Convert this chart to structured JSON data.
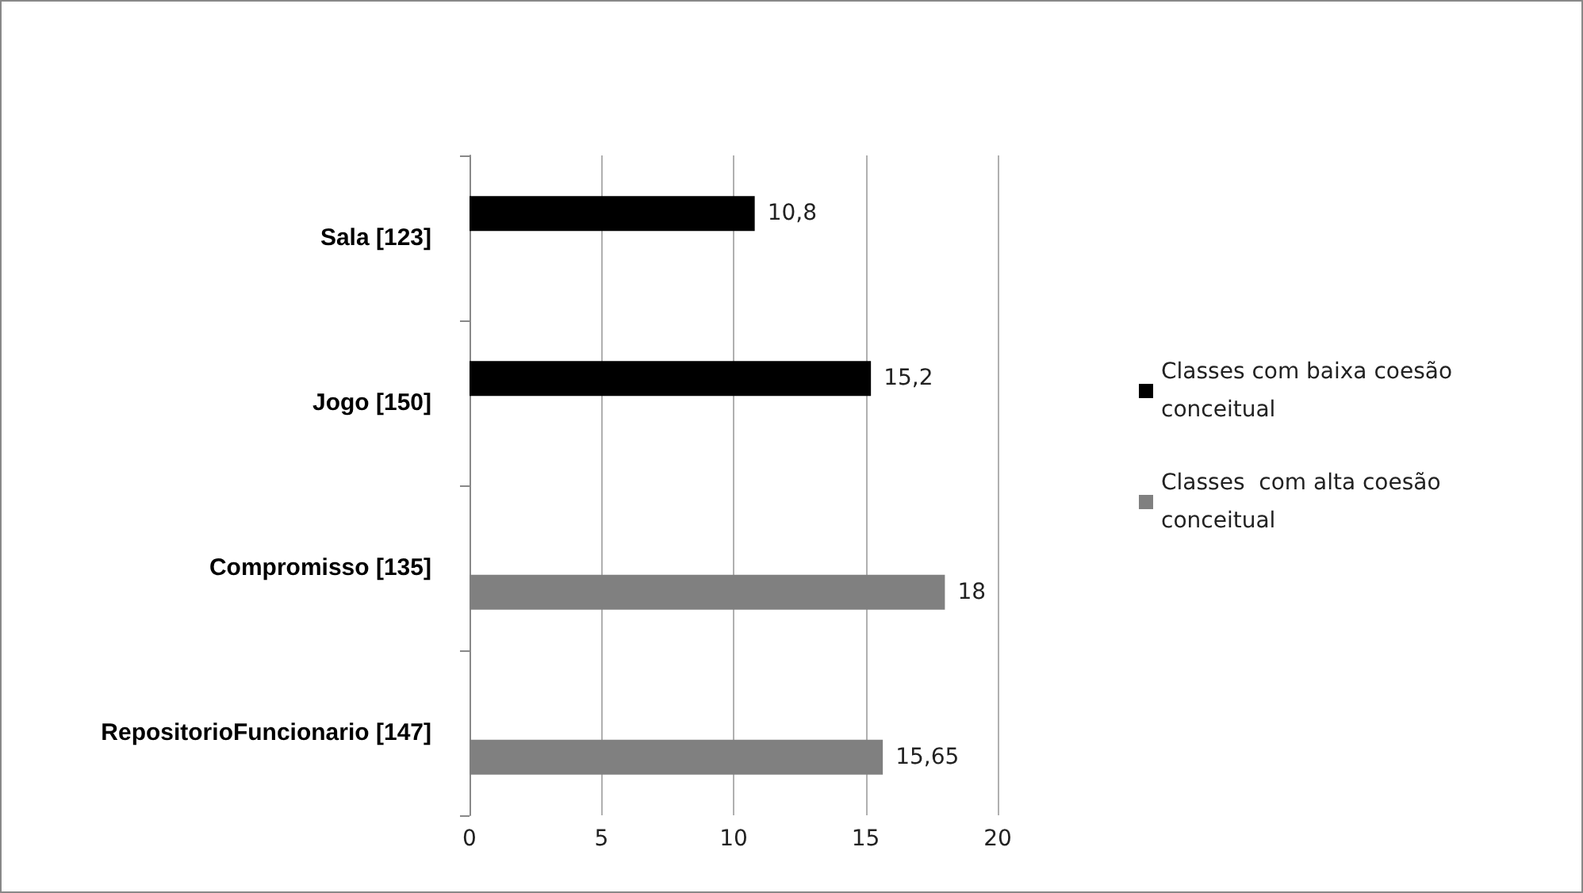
{
  "chart_data": {
    "type": "bar",
    "orientation": "horizontal",
    "categories": [
      "Sala [123]",
      "Jogo [150]",
      "Compromisso [135]",
      "RepositorioFuncionario [147]"
    ],
    "series": [
      {
        "name": "Classes com baixa coesão conceitual",
        "color": "#000000",
        "values": [
          10.8,
          15.2,
          null,
          null
        ],
        "value_labels": [
          "10,8",
          "15,2",
          null,
          null
        ]
      },
      {
        "name": "Classes  com alta coesão conceitual",
        "color": "#808080",
        "values": [
          null,
          null,
          18,
          15.65
        ],
        "value_labels": [
          null,
          null,
          "18",
          "15,65"
        ]
      }
    ],
    "xlim": [
      0,
      20
    ],
    "xticks": [
      0,
      5,
      10,
      15,
      20
    ],
    "grid": "x",
    "legend": "right"
  }
}
